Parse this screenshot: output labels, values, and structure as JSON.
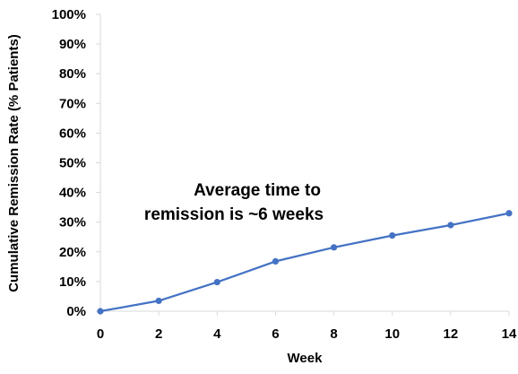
{
  "chart_data": {
    "type": "line",
    "title": "",
    "xlabel": "Week",
    "ylabel": "Cumulative Remission Rate (% Patients)",
    "x": [
      0,
      2,
      4,
      6,
      8,
      10,
      12,
      14
    ],
    "series": [
      {
        "values": [
          0,
          3.5,
          9.8,
          16.8,
          21.5,
          25.5,
          29,
          33
        ]
      }
    ],
    "xlim": [
      0,
      14
    ],
    "ylim": [
      0,
      100
    ],
    "x_ticks": [
      "0",
      "2",
      "4",
      "6",
      "8",
      "10",
      "12",
      "14"
    ],
    "y_ticks": [
      "0%",
      "10%",
      "20%",
      "30%",
      "40%",
      "50%",
      "60%",
      "70%",
      "80%",
      "90%",
      "100%"
    ],
    "y_tick_values": [
      0,
      10,
      20,
      30,
      40,
      50,
      60,
      70,
      80,
      90,
      100
    ],
    "annotation": {
      "lines": [
        "Average time to",
        "remission is ~6 weeks"
      ]
    },
    "grid": false,
    "legend": "none",
    "line_color": "#4472C4",
    "marker_color": "#4472C4",
    "axis_color": "#D9D9D9"
  }
}
